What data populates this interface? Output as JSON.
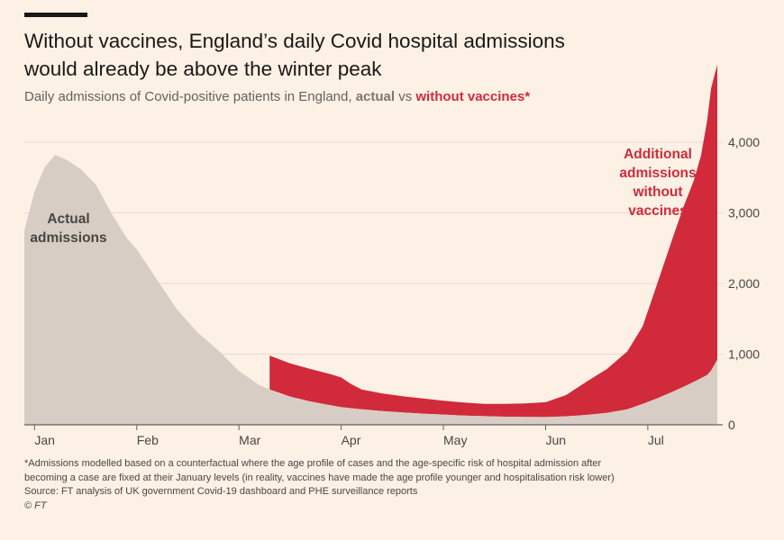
{
  "header": {
    "title_line1": "Without vaccines, England’s daily Covid hospital admissions",
    "title_line2": "would already be above the winter peak",
    "subtitle_prefix": "Daily admissions of Covid-positive patients in England,",
    "subtitle_actual": "actual",
    "subtitle_vs": "vs",
    "subtitle_without": "without vaccines*"
  },
  "colors": {
    "background": "#fdf1e6",
    "actual_fill": "#d7cdc4",
    "without_fill": "#d12a3a",
    "gridline": "#e7dcd2",
    "axis": "#66605c"
  },
  "chart_data": {
    "type": "area",
    "x_unit": "month position (0 = start of Jan, 1 = start of Feb, ...)",
    "xticks": [
      {
        "label": "Jan",
        "x": 0
      },
      {
        "label": "Feb",
        "x": 1
      },
      {
        "label": "Mar",
        "x": 2
      },
      {
        "label": "Apr",
        "x": 3
      },
      {
        "label": "May",
        "x": 4
      },
      {
        "label": "Jun",
        "x": 5
      },
      {
        "label": "Jul",
        "x": 6
      }
    ],
    "yticks": [
      {
        "label": "0",
        "value": 0
      },
      {
        "label": "1,000",
        "value": 1000
      },
      {
        "label": "2,000",
        "value": 2000
      },
      {
        "label": "3,000",
        "value": 3000
      },
      {
        "label": "4,000",
        "value": 4000
      }
    ],
    "ylim": [
      0,
      4200
    ],
    "xlim": [
      -0.1,
      6.68
    ],
    "grid": true,
    "series": [
      {
        "name": "Actual admissions",
        "points": [
          [
            -0.1,
            2750
          ],
          [
            0.0,
            3300
          ],
          [
            0.1,
            3650
          ],
          [
            0.2,
            3820
          ],
          [
            0.3,
            3760
          ],
          [
            0.45,
            3620
          ],
          [
            0.6,
            3400
          ],
          [
            0.75,
            3000
          ],
          [
            0.9,
            2650
          ],
          [
            1.0,
            2480
          ],
          [
            1.2,
            2050
          ],
          [
            1.4,
            1620
          ],
          [
            1.6,
            1300
          ],
          [
            1.8,
            1050
          ],
          [
            2.0,
            760
          ],
          [
            2.2,
            560
          ],
          [
            2.4,
            440
          ],
          [
            2.6,
            360
          ],
          [
            2.8,
            300
          ],
          [
            3.0,
            250
          ],
          [
            3.2,
            220
          ],
          [
            3.4,
            195
          ],
          [
            3.6,
            175
          ],
          [
            3.8,
            158
          ],
          [
            4.0,
            145
          ],
          [
            4.2,
            130
          ],
          [
            4.4,
            122
          ],
          [
            4.6,
            115
          ],
          [
            4.8,
            112
          ],
          [
            5.0,
            110
          ],
          [
            5.2,
            120
          ],
          [
            5.4,
            140
          ],
          [
            5.6,
            170
          ],
          [
            5.8,
            220
          ],
          [
            6.0,
            320
          ],
          [
            6.2,
            440
          ],
          [
            6.4,
            570
          ],
          [
            6.6,
            720
          ],
          [
            6.68,
            920
          ]
        ]
      },
      {
        "name": "Additional admissions without vaccines",
        "points": [
          [
            2.3,
            480
          ],
          [
            2.5,
            470
          ],
          [
            2.7,
            460
          ],
          [
            2.9,
            440
          ],
          [
            3.0,
            420
          ],
          [
            3.1,
            340
          ],
          [
            3.2,
            280
          ],
          [
            3.4,
            250
          ],
          [
            3.6,
            230
          ],
          [
            3.8,
            215
          ],
          [
            4.0,
            195
          ],
          [
            4.2,
            185
          ],
          [
            4.4,
            175
          ],
          [
            4.6,
            180
          ],
          [
            4.8,
            190
          ],
          [
            5.0,
            210
          ],
          [
            5.2,
            300
          ],
          [
            5.4,
            470
          ],
          [
            5.6,
            620
          ],
          [
            5.8,
            820
          ],
          [
            5.95,
            1100
          ],
          [
            6.1,
            1650
          ],
          [
            6.25,
            2200
          ],
          [
            6.35,
            2550
          ],
          [
            6.45,
            2850
          ],
          [
            6.52,
            3150
          ],
          [
            6.58,
            3600
          ],
          [
            6.62,
            4000
          ],
          [
            6.68,
            4180
          ]
        ]
      }
    ],
    "annotations": {
      "actual": [
        "Actual",
        "admissions"
      ],
      "without": [
        "Additional",
        "admissions",
        "without",
        "vaccines"
      ]
    }
  },
  "footnote": {
    "line1": "*Admissions modelled based on a counterfactual where the age profile of cases and the age-specific risk of hospital admission after",
    "line2": "becoming a case are fixed at their January levels (in reality, vaccines have made the age profile younger and hospitalisation risk lower)",
    "source": "Source: FT analysis of UK government Covid-19 dashboard and PHE surveillance reports",
    "copyright": "© FT"
  }
}
